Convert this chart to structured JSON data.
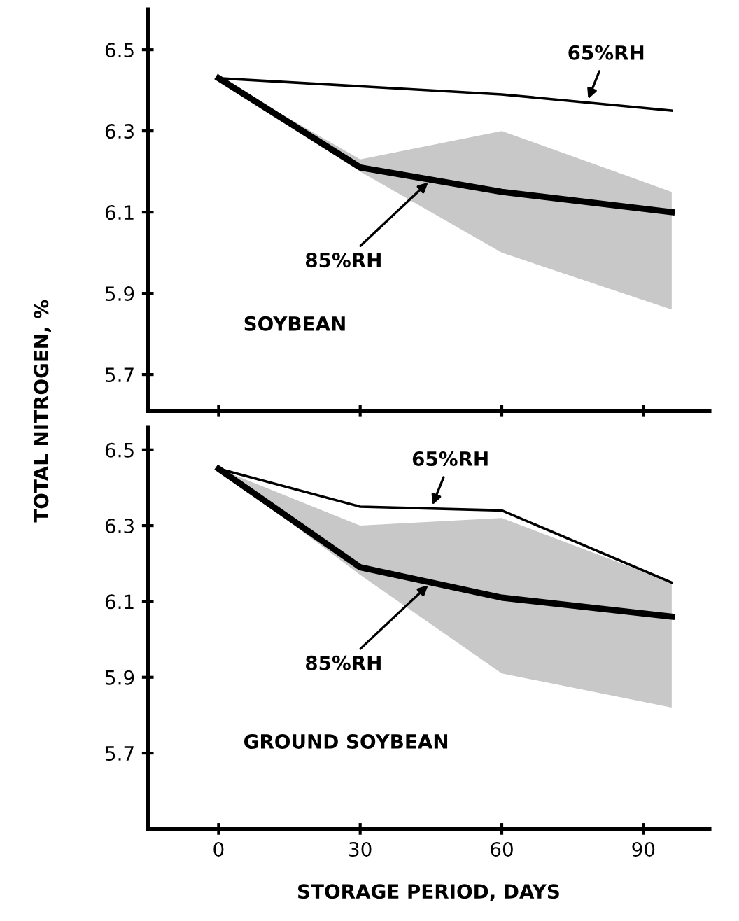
{
  "chart_data": [
    {
      "type": "line",
      "ylabel": "TOTAL NITROGEN, %",
      "xlim": [
        -15,
        104
      ],
      "xticks": [
        0,
        30,
        60,
        90
      ],
      "ylim": [
        5.61,
        6.6
      ],
      "yticks": [
        5.7,
        5.9,
        6.1,
        6.3,
        6.5
      ],
      "tick_labels": "y",
      "grid": false,
      "marker": "none",
      "line_style": "solid",
      "annotations": [
        "SOYBEAN"
      ],
      "series": [
        {
          "name": "65%RH",
          "color": "#000000",
          "x": [
            0,
            60,
            96
          ],
          "values": [
            6.43,
            6.39,
            6.35
          ]
        },
        {
          "name": "85%RH",
          "color": "#000000",
          "x": [
            0,
            30,
            60,
            96
          ],
          "values": [
            6.43,
            6.21,
            6.15,
            6.1
          ],
          "lower": [
            6.43,
            6.2,
            6.0,
            5.86
          ],
          "upper": [
            6.43,
            6.23,
            6.3,
            6.15
          ]
        }
      ]
    },
    {
      "type": "line",
      "xlabel": "STORAGE PERIOD, DAYS",
      "xlim": [
        -15,
        104
      ],
      "xticks": [
        0,
        30,
        60,
        90
      ],
      "ylim": [
        5.5,
        6.56
      ],
      "yticks": [
        5.7,
        5.9,
        6.1,
        6.3,
        6.5
      ],
      "grid": false,
      "marker": "none",
      "line_style": "solid",
      "annotations": [
        "GROUND SOYBEAN"
      ],
      "series": [
        {
          "name": "65%RH",
          "color": "#000000",
          "x": [
            0,
            30,
            60,
            96
          ],
          "values": [
            6.45,
            6.35,
            6.34,
            6.15
          ]
        },
        {
          "name": "85%RH",
          "color": "#000000",
          "x": [
            0,
            30,
            60,
            96
          ],
          "values": [
            6.45,
            6.19,
            6.11,
            6.06
          ],
          "lower": [
            6.45,
            6.17,
            5.91,
            5.82
          ],
          "upper": [
            6.45,
            6.3,
            6.32,
            6.15
          ]
        }
      ]
    }
  ]
}
